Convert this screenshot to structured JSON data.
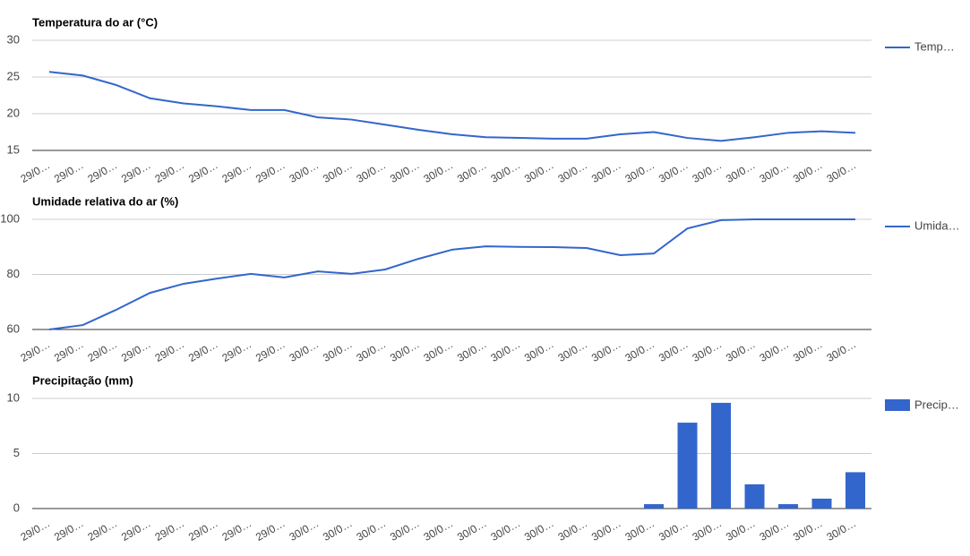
{
  "chart_data": [
    {
      "type": "line",
      "title": "Temperatura do ar (°C)",
      "categories": [
        "29/0…",
        "29/0…",
        "29/0…",
        "29/0…",
        "29/0…",
        "29/0…",
        "29/0…",
        "29/0…",
        "30/0…",
        "30/0…",
        "30/0…",
        "30/0…",
        "30/0…",
        "30/0…",
        "30/0…",
        "30/0…",
        "30/0…",
        "30/0…",
        "30/0…",
        "30/0…",
        "30/0…",
        "30/0…",
        "30/0…",
        "30/0…",
        "30/0…"
      ],
      "series": [
        {
          "name": "Temp…",
          "color": "#3366cc",
          "values": [
            25.7,
            25.2,
            23.9,
            22.1,
            21.4,
            21.0,
            20.5,
            20.5,
            19.5,
            19.2,
            18.5,
            17.8,
            17.2,
            16.8,
            16.7,
            16.6,
            16.6,
            17.2,
            17.5,
            16.7,
            16.3,
            16.8,
            17.4,
            17.6,
            17.4
          ]
        }
      ],
      "ylim": [
        15,
        30
      ],
      "yticks": [
        15,
        20,
        25,
        30
      ],
      "grid": true,
      "legend": "right"
    },
    {
      "type": "line",
      "title": "Umidade relativa do ar (%)",
      "categories": [
        "29/0…",
        "29/0…",
        "29/0…",
        "29/0…",
        "29/0…",
        "29/0…",
        "29/0…",
        "29/0…",
        "30/0…",
        "30/0…",
        "30/0…",
        "30/0…",
        "30/0…",
        "30/0…",
        "30/0…",
        "30/0…",
        "30/0…",
        "30/0…",
        "30/0…",
        "30/0…",
        "30/0…",
        "30/0…",
        "30/0…",
        "30/0…",
        "30/0…"
      ],
      "series": [
        {
          "name": "Umida…",
          "color": "#3366cc",
          "values": [
            60,
            61.6,
            67.2,
            73.3,
            76.6,
            78.5,
            80.2,
            78.9,
            81.1,
            80.2,
            81.8,
            85.7,
            89.0,
            90.2,
            90.0,
            89.9,
            89.6,
            87.0,
            87.6,
            96.7,
            99.7,
            100,
            100,
            100,
            100
          ]
        }
      ],
      "ylim": [
        60,
        100
      ],
      "yticks": [
        60,
        80,
        100
      ],
      "grid": true,
      "legend": "right"
    },
    {
      "type": "bar",
      "title": "Precipitação (mm)",
      "categories": [
        "29/0…",
        "29/0…",
        "29/0…",
        "29/0…",
        "29/0…",
        "29/0…",
        "29/0…",
        "29/0…",
        "30/0…",
        "30/0…",
        "30/0…",
        "30/0…",
        "30/0…",
        "30/0…",
        "30/0…",
        "30/0…",
        "30/0…",
        "30/0…",
        "30/0…",
        "30/0…",
        "30/0…",
        "30/0…",
        "30/0…",
        "30/0…",
        "30/0…"
      ],
      "series": [
        {
          "name": "Precip…",
          "color": "#3366cc",
          "values": [
            0,
            0,
            0,
            0,
            0,
            0,
            0,
            0,
            0,
            0,
            0,
            0,
            0,
            0,
            0,
            0,
            0,
            0,
            0.4,
            7.8,
            9.6,
            2.2,
            0.4,
            0.9,
            3.3
          ]
        }
      ],
      "ylim": [
        0,
        10
      ],
      "yticks": [
        0,
        5,
        10
      ],
      "grid": true,
      "legend": "right"
    }
  ]
}
